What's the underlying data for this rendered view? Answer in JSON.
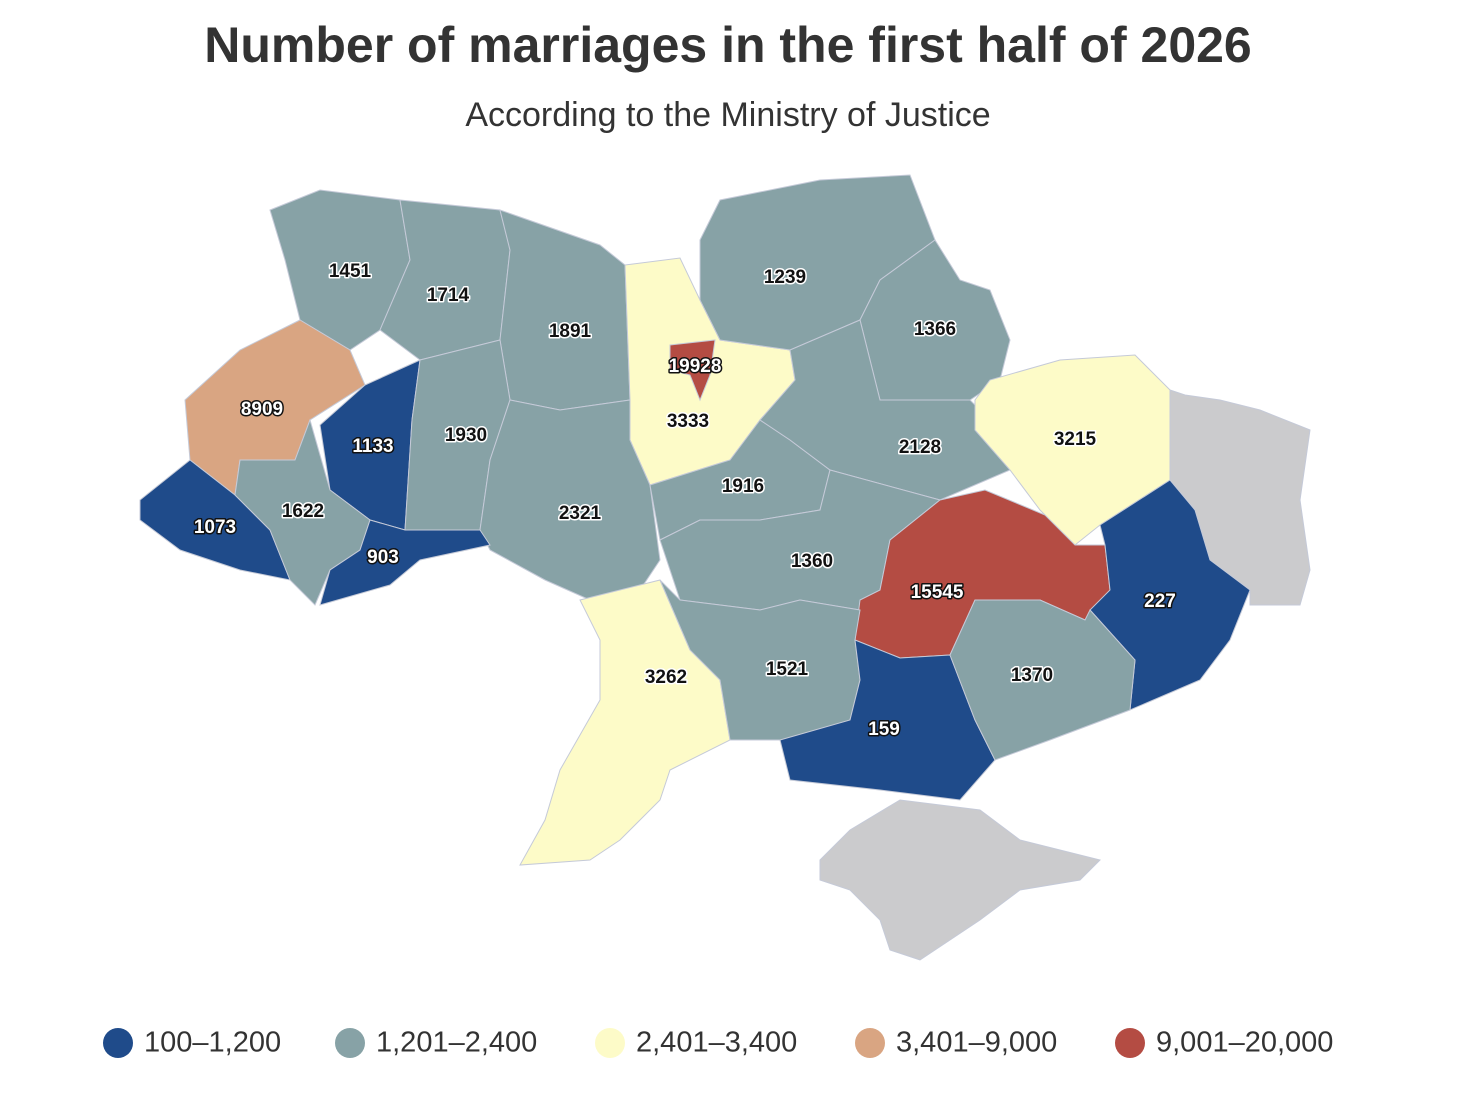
{
  "title": "Number of marriages in the first half of 2026",
  "subtitle": "According to the Ministry of Justice",
  "legend": [
    {
      "label": "100–1,200",
      "min": 100,
      "max": 1200,
      "color": "#1f4b8a"
    },
    {
      "label": "1,201–2,400",
      "min": 1201,
      "max": 2400,
      "color": "#87a2a6"
    },
    {
      "label": "2,401–3,400",
      "min": 2401,
      "max": 3400,
      "color": "#fdfbc8"
    },
    {
      "label": "3,401–9,000",
      "min": 3401,
      "max": 9000,
      "color": "#d9a582"
    },
    {
      "label": "9,001–20,000",
      "min": 9001,
      "max": 20000,
      "color": "#b44c43"
    }
  ],
  "regions": [
    {
      "value": 1451
    },
    {
      "value": 1714
    },
    {
      "value": 1891
    },
    {
      "value": 3333
    },
    {
      "value": 19928
    },
    {
      "value": 1239
    },
    {
      "value": 1366
    },
    {
      "value": 8909
    },
    {
      "value": 1133
    },
    {
      "value": 1930
    },
    {
      "value": 2321
    },
    {
      "value": 1073
    },
    {
      "value": 1622
    },
    {
      "value": 903
    },
    {
      "value": 1916
    },
    {
      "value": 2128
    },
    {
      "value": 3215
    },
    {
      "value": 1360
    },
    {
      "value": 15545
    },
    {
      "value": 3262
    },
    {
      "value": 1521
    },
    {
      "value": 227
    },
    {
      "value": 159
    },
    {
      "value": 1370
    }
  ]
}
